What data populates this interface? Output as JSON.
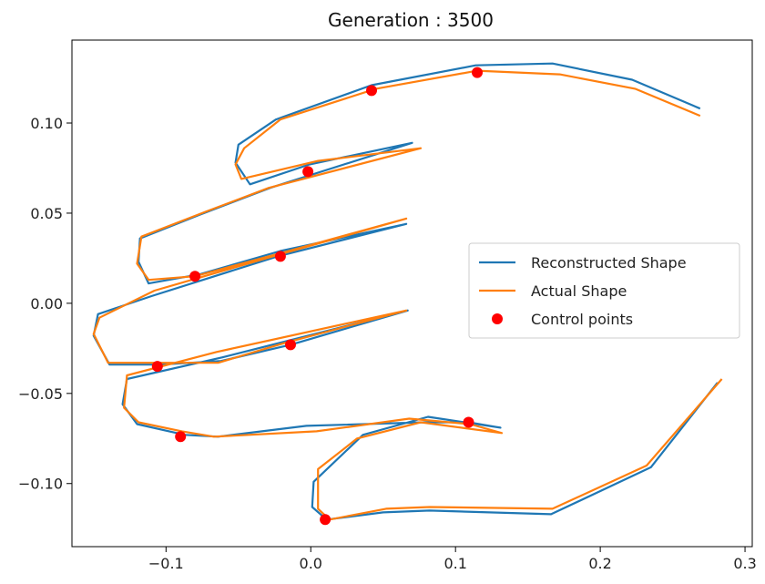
{
  "chart_data": {
    "type": "line",
    "title": "Generation : 3500",
    "xlabel": "",
    "ylabel": "",
    "xlim": [
      -0.165,
      0.305
    ],
    "ylim": [
      -0.135,
      0.146
    ],
    "x_ticks": [
      -0.1,
      0.0,
      0.1,
      0.2,
      0.3
    ],
    "x_tick_labels": [
      "−0.1",
      "0.0",
      "0.1",
      "0.2",
      "0.3"
    ],
    "y_ticks": [
      -0.1,
      -0.05,
      0.0,
      0.05,
      0.1
    ],
    "y_tick_labels": [
      "−0.10",
      "−0.05",
      "0.00",
      "0.05",
      "0.10"
    ],
    "grid": false,
    "legend_position": "center-right",
    "series": [
      {
        "name": "Reconstructed Shape",
        "kind": "line",
        "color": "#1f77b4",
        "points": [
          [
            0.269,
            0.108
          ],
          [
            0.222,
            0.124
          ],
          [
            0.167,
            0.133
          ],
          [
            0.114,
            0.132
          ],
          [
            0.042,
            0.121
          ],
          [
            -0.024,
            0.102
          ],
          [
            -0.05,
            0.088
          ],
          [
            -0.052,
            0.078
          ],
          [
            -0.042,
            0.066
          ],
          [
            -0.001,
            0.077
          ],
          [
            0.07,
            0.089
          ],
          [
            -0.028,
            0.064
          ],
          [
            -0.077,
            0.049
          ],
          [
            -0.118,
            0.036
          ],
          [
            -0.119,
            0.023
          ],
          [
            -0.112,
            0.011
          ],
          [
            -0.077,
            0.016
          ],
          [
            -0.021,
            0.029
          ],
          [
            0.066,
            0.044
          ],
          [
            -0.023,
            0.026
          ],
          [
            -0.11,
            0.004
          ],
          [
            -0.147,
            -0.006
          ],
          [
            -0.15,
            -0.018
          ],
          [
            -0.139,
            -0.034
          ],
          [
            -0.104,
            -0.034
          ],
          [
            -0.062,
            -0.032
          ],
          [
            -0.014,
            -0.023
          ],
          [
            0.067,
            -0.004
          ],
          [
            -0.061,
            -0.03
          ],
          [
            -0.127,
            -0.042
          ],
          [
            -0.13,
            -0.056
          ],
          [
            -0.12,
            -0.067
          ],
          [
            -0.087,
            -0.073
          ],
          [
            -0.064,
            -0.074
          ],
          [
            -0.003,
            -0.068
          ],
          [
            0.079,
            -0.066
          ],
          [
            0.109,
            -0.066
          ],
          [
            0.131,
            -0.069
          ],
          [
            0.081,
            -0.063
          ],
          [
            0.036,
            -0.073
          ],
          [
            0.002,
            -0.099
          ],
          [
            0.001,
            -0.113
          ],
          [
            0.011,
            -0.12
          ],
          [
            0.05,
            -0.116
          ],
          [
            0.082,
            -0.115
          ],
          [
            0.166,
            -0.117
          ],
          [
            0.235,
            -0.091
          ],
          [
            0.281,
            -0.044
          ]
        ]
      },
      {
        "name": "Actual Shape",
        "kind": "line",
        "color": "#ff7f0e",
        "points": [
          [
            0.269,
            0.104
          ],
          [
            0.224,
            0.119
          ],
          [
            0.172,
            0.127
          ],
          [
            0.115,
            0.129
          ],
          [
            0.045,
            0.119
          ],
          [
            -0.021,
            0.102
          ],
          [
            -0.046,
            0.086
          ],
          [
            -0.052,
            0.077
          ],
          [
            -0.048,
            0.069
          ],
          [
            0.005,
            0.079
          ],
          [
            0.076,
            0.086
          ],
          [
            -0.029,
            0.064
          ],
          [
            -0.072,
            0.051
          ],
          [
            -0.117,
            0.037
          ],
          [
            -0.12,
            0.022
          ],
          [
            -0.112,
            0.013
          ],
          [
            -0.08,
            0.015
          ],
          [
            -0.02,
            0.028
          ],
          [
            0.066,
            0.047
          ],
          [
            -0.022,
            0.027
          ],
          [
            -0.108,
            0.007
          ],
          [
            -0.146,
            -0.008
          ],
          [
            -0.15,
            -0.017
          ],
          [
            -0.14,
            -0.033
          ],
          [
            -0.103,
            -0.033
          ],
          [
            -0.064,
            -0.033
          ],
          [
            -0.018,
            -0.022
          ],
          [
            0.066,
            -0.004
          ],
          [
            -0.065,
            -0.027
          ],
          [
            -0.127,
            -0.04
          ],
          [
            -0.129,
            -0.058
          ],
          [
            -0.119,
            -0.066
          ],
          [
            -0.089,
            -0.071
          ],
          [
            -0.067,
            -0.074
          ],
          [
            0.004,
            -0.071
          ],
          [
            0.068,
            -0.064
          ],
          [
            0.11,
            -0.067
          ],
          [
            0.132,
            -0.072
          ],
          [
            0.076,
            -0.066
          ],
          [
            0.032,
            -0.075
          ],
          [
            0.005,
            -0.092
          ],
          [
            0.005,
            -0.114
          ],
          [
            0.013,
            -0.12
          ],
          [
            0.052,
            -0.114
          ],
          [
            0.082,
            -0.113
          ],
          [
            0.167,
            -0.114
          ],
          [
            0.232,
            -0.09
          ],
          [
            0.284,
            -0.042
          ]
        ]
      },
      {
        "name": "Control points",
        "kind": "scatter",
        "color": "#ff0000",
        "points": [
          [
            0.115,
            0.128
          ],
          [
            0.042,
            0.118
          ],
          [
            -0.002,
            0.073
          ],
          [
            -0.021,
            0.026
          ],
          [
            -0.08,
            0.015
          ],
          [
            -0.014,
            -0.023
          ],
          [
            -0.106,
            -0.035
          ],
          [
            -0.09,
            -0.074
          ],
          [
            0.109,
            -0.066
          ],
          [
            0.01,
            -0.12
          ]
        ]
      }
    ]
  }
}
